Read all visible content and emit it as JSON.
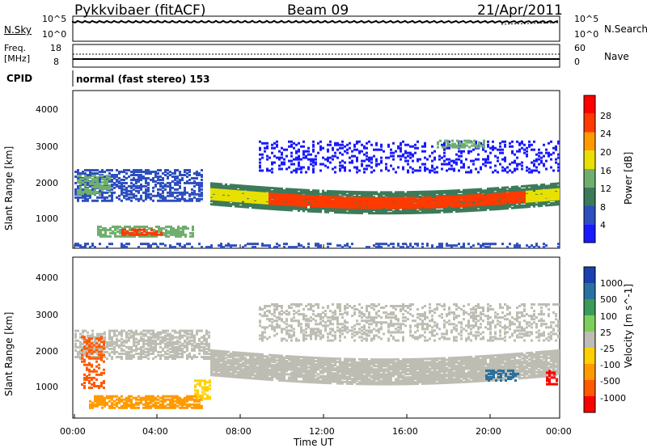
{
  "header": {
    "radar": "Pykkvibaer (fitACF)",
    "beam": "Beam 09",
    "date": "21/Apr/2011"
  },
  "noise_panel": {
    "left_label": "N.Sky",
    "left_ticks": [
      "10^5",
      "10^0"
    ],
    "right_ticks": [
      "10^5",
      "10^0"
    ],
    "right_label": "N.Search"
  },
  "freq_panel": {
    "left_label_1": "Freq.",
    "left_label_2": "[MHz]",
    "left_ticks": [
      "18",
      "8"
    ],
    "right_ticks": [
      "60",
      "0"
    ],
    "right_label": "Nave"
  },
  "cpid_panel": {
    "label": "CPID",
    "text": "normal (fast stereo) 153"
  },
  "x_axis": {
    "ticks": [
      "00:00",
      "04:00",
      "08:00",
      "12:00",
      "16:00",
      "20:00",
      "00:00"
    ],
    "label": "Time UT"
  },
  "chart_data": [
    {
      "type": "heatmap",
      "ylabel": "Slant Range [km]",
      "yticks": [
        "1000",
        "2000",
        "3000",
        "4000"
      ],
      "ylim": [
        180,
        4600
      ],
      "colorbar": {
        "label": "Power [dB]",
        "ticks": [
          "4",
          "8",
          "12",
          "16",
          "20",
          "24",
          "28"
        ],
        "range": [
          0,
          30
        ],
        "colors": [
          "#1a1aff",
          "#2e4fbf",
          "#3d7a5a",
          "#6fae6f",
          "#e8e000",
          "#ff9a00",
          "#ff3a00",
          "#ff0000"
        ]
      }
    },
    {
      "type": "heatmap",
      "ylabel": "Slant Range [km]",
      "yticks": [
        "1000",
        "2000",
        "3000",
        "4000"
      ],
      "ylim": [
        180,
        4600
      ],
      "colorbar": {
        "label": "Velocity [m s^-1]",
        "ticks": [
          "1000",
          "500",
          "100",
          "25",
          "-25",
          "-100",
          "-500",
          "-1000"
        ],
        "colors": [
          "#1a3fb0",
          "#2a70a0",
          "#3c9a5a",
          "#7ccf5a",
          "#bdbdb3",
          "#ffd000",
          "#ff9a00",
          "#ff5a00",
          "#ff0000"
        ]
      }
    }
  ],
  "colors": {
    "power_band": "#ff3a00",
    "velocity_ground": "#bdbdb3"
  }
}
